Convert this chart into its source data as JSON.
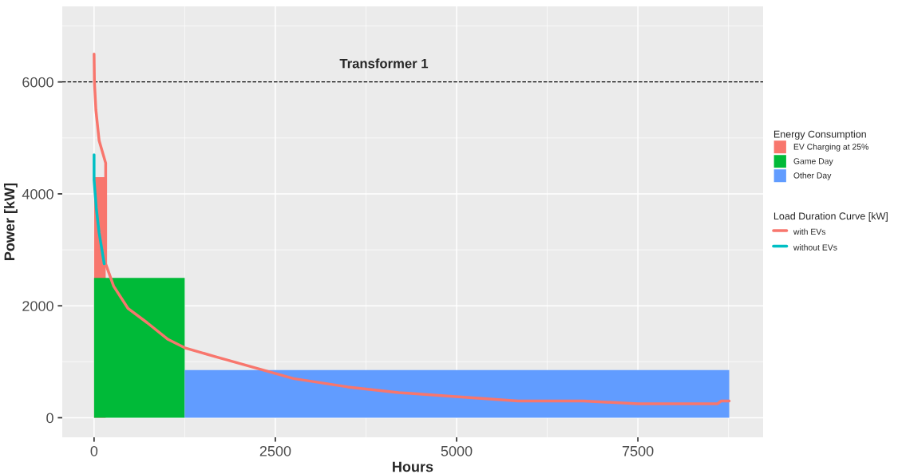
{
  "chart_data": {
    "type": "line",
    "xlabel": "Hours",
    "ylabel": "Power [kW]",
    "legend_title": "Energy Consumption",
    "xlim": [
      -439,
      9227
    ],
    "xticks": [
      0,
      2500,
      5000,
      7500
    ],
    "ylim": [
      -350,
      7350
    ],
    "yticks": [
      0,
      2000,
      4000,
      6000
    ],
    "grid": true,
    "legend": "right",
    "series": [
      {
        "name": "EV Charging at 25%",
        "type": "area",
        "color": "#f8766d",
        "x": [
          0,
          160
        ],
        "values": [
          4300,
          4300
        ]
      },
      {
        "name": "Game Day",
        "type": "area",
        "color": "#00ba38",
        "x": [
          0,
          1250
        ],
        "values": [
          2500,
          2500
        ]
      },
      {
        "name": "Other Day",
        "type": "area",
        "color": "#619cff",
        "x": [
          1250,
          8760
        ],
        "values": [
          850,
          850
        ]
      },
      {
        "name": "with EVs",
        "color": "#f8766d",
        "x": [
          0,
          5,
          25,
          70,
          160,
          160,
          270,
          470,
          730,
          1020,
          1250,
          1650,
          2200,
          2750,
          3500,
          4200,
          4750,
          5300,
          5850,
          6750,
          7500,
          8600,
          8650,
          8760
        ],
        "values": [
          6500,
          6000,
          5500,
          4950,
          4550,
          2750,
          2350,
          1950,
          1700,
          1400,
          1250,
          1100,
          900,
          700,
          550,
          450,
          400,
          350,
          300,
          300,
          250,
          250,
          300,
          300
        ]
      },
      {
        "name": "without EVs",
        "color": "#00bfc4",
        "x": [
          0,
          0,
          30,
          70,
          140
        ],
        "values": [
          4700,
          4250,
          3750,
          3300,
          2750
        ]
      }
    ],
    "ref_lines": [
      {
        "axis": "y",
        "value": 6000,
        "line_style": "dashed",
        "color": "#000000",
        "label": "Transformer 1"
      }
    ],
    "annotations": [
      "Load Duration Curve [kW]"
    ]
  }
}
